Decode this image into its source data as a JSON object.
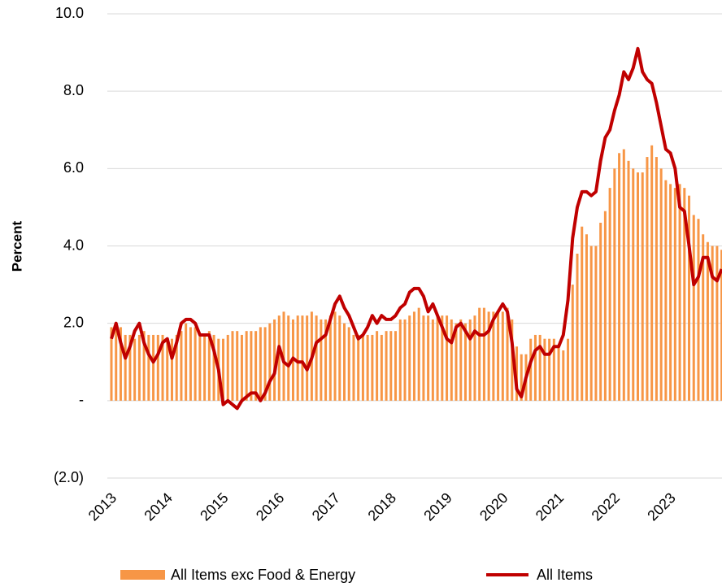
{
  "chart_data": {
    "type": "bar",
    "y_label": "Percent",
    "categories": [
      "2013",
      null,
      null,
      null,
      null,
      null,
      null,
      null,
      null,
      null,
      null,
      null,
      "2014",
      null,
      null,
      null,
      null,
      null,
      null,
      null,
      null,
      null,
      null,
      null,
      "2015",
      null,
      null,
      null,
      null,
      null,
      null,
      null,
      null,
      null,
      null,
      null,
      "2016",
      null,
      null,
      null,
      null,
      null,
      null,
      null,
      null,
      null,
      null,
      null,
      "2017",
      null,
      null,
      null,
      null,
      null,
      null,
      null,
      null,
      null,
      null,
      null,
      "2018",
      null,
      null,
      null,
      null,
      null,
      null,
      null,
      null,
      null,
      null,
      null,
      "2019",
      null,
      null,
      null,
      null,
      null,
      null,
      null,
      null,
      null,
      null,
      null,
      "2020",
      null,
      null,
      null,
      null,
      null,
      null,
      null,
      null,
      null,
      null,
      null,
      "2021",
      null,
      null,
      null,
      null,
      null,
      null,
      null,
      null,
      null,
      null,
      null,
      "2022",
      null,
      null,
      null,
      null,
      null,
      null,
      null,
      null,
      null,
      null,
      null,
      "2023",
      null,
      null,
      null,
      null,
      null,
      null,
      null,
      null,
      null,
      null,
      null
    ],
    "series": [
      {
        "name": "All Items exc Food & Energy",
        "type": "bar",
        "color": "#f79646",
        "values": [
          1.9,
          2.0,
          1.9,
          1.7,
          1.7,
          1.6,
          1.7,
          1.8,
          1.7,
          1.7,
          1.7,
          1.7,
          1.6,
          1.6,
          1.7,
          1.8,
          2.0,
          1.9,
          1.9,
          1.7,
          1.7,
          1.8,
          1.7,
          1.6,
          1.6,
          1.7,
          1.8,
          1.8,
          1.7,
          1.8,
          1.8,
          1.8,
          1.9,
          1.9,
          2.0,
          2.1,
          2.2,
          2.3,
          2.2,
          2.1,
          2.2,
          2.2,
          2.2,
          2.3,
          2.2,
          2.1,
          2.1,
          2.2,
          2.3,
          2.2,
          2.0,
          1.9,
          1.7,
          1.7,
          1.7,
          1.7,
          1.7,
          1.8,
          1.7,
          1.8,
          1.8,
          1.8,
          2.1,
          2.1,
          2.2,
          2.3,
          2.4,
          2.2,
          2.2,
          2.1,
          2.2,
          2.2,
          2.2,
          2.1,
          2.0,
          2.1,
          2.0,
          2.1,
          2.2,
          2.4,
          2.4,
          2.3,
          2.3,
          2.3,
          2.3,
          2.4,
          2.1,
          1.4,
          1.2,
          1.2,
          1.6,
          1.7,
          1.7,
          1.6,
          1.6,
          1.6,
          1.4,
          1.3,
          1.6,
          3.0,
          3.8,
          4.5,
          4.3,
          4.0,
          4.0,
          4.6,
          4.9,
          5.5,
          6.0,
          6.4,
          6.5,
          6.2,
          6.0,
          5.9,
          5.9,
          6.3,
          6.6,
          6.3,
          6.0,
          5.7,
          5.6,
          5.5,
          5.6,
          5.5,
          5.3,
          4.8,
          4.7,
          4.3,
          4.1,
          4.0,
          4.0,
          3.9
        ]
      },
      {
        "name": "All Items",
        "type": "line",
        "color": "#c00000",
        "values": [
          1.6,
          2.0,
          1.5,
          1.1,
          1.4,
          1.8,
          2.0,
          1.5,
          1.2,
          1.0,
          1.2,
          1.5,
          1.6,
          1.1,
          1.5,
          2.0,
          2.1,
          2.1,
          2.0,
          1.7,
          1.7,
          1.7,
          1.3,
          0.8,
          -0.1,
          0.0,
          -0.1,
          -0.2,
          0.0,
          0.1,
          0.2,
          0.2,
          0.0,
          0.2,
          0.5,
          0.7,
          1.4,
          1.0,
          0.9,
          1.1,
          1.0,
          1.0,
          0.8,
          1.1,
          1.5,
          1.6,
          1.7,
          2.1,
          2.5,
          2.7,
          2.4,
          2.2,
          1.9,
          1.6,
          1.7,
          1.9,
          2.2,
          2.0,
          2.2,
          2.1,
          2.1,
          2.2,
          2.4,
          2.5,
          2.8,
          2.9,
          2.9,
          2.7,
          2.3,
          2.5,
          2.2,
          1.9,
          1.6,
          1.5,
          1.9,
          2.0,
          1.8,
          1.6,
          1.8,
          1.7,
          1.7,
          1.8,
          2.1,
          2.3,
          2.5,
          2.3,
          1.5,
          0.3,
          0.1,
          0.6,
          1.0,
          1.3,
          1.4,
          1.2,
          1.2,
          1.4,
          1.4,
          1.7,
          2.6,
          4.2,
          5.0,
          5.4,
          5.4,
          5.3,
          5.4,
          6.2,
          6.8,
          7.0,
          7.5,
          7.9,
          8.5,
          8.3,
          8.6,
          9.1,
          8.5,
          8.3,
          8.2,
          7.7,
          7.1,
          6.5,
          6.4,
          6.0,
          5.0,
          4.9,
          4.0,
          3.0,
          3.2,
          3.7,
          3.7,
          3.2,
          3.1,
          3.4
        ]
      }
    ],
    "ylim": [
      -2,
      10
    ],
    "yticks": [
      {
        "value": -2,
        "label": "(2.0)"
      },
      {
        "value": 0,
        "label": "-"
      },
      {
        "value": 2,
        "label": "2.0"
      },
      {
        "value": 4,
        "label": "4.0"
      },
      {
        "value": 6,
        "label": "6.0"
      },
      {
        "value": 8,
        "label": "8.0"
      },
      {
        "value": 10,
        "label": "10.0"
      }
    ],
    "grid": true,
    "legend": "bottom"
  }
}
